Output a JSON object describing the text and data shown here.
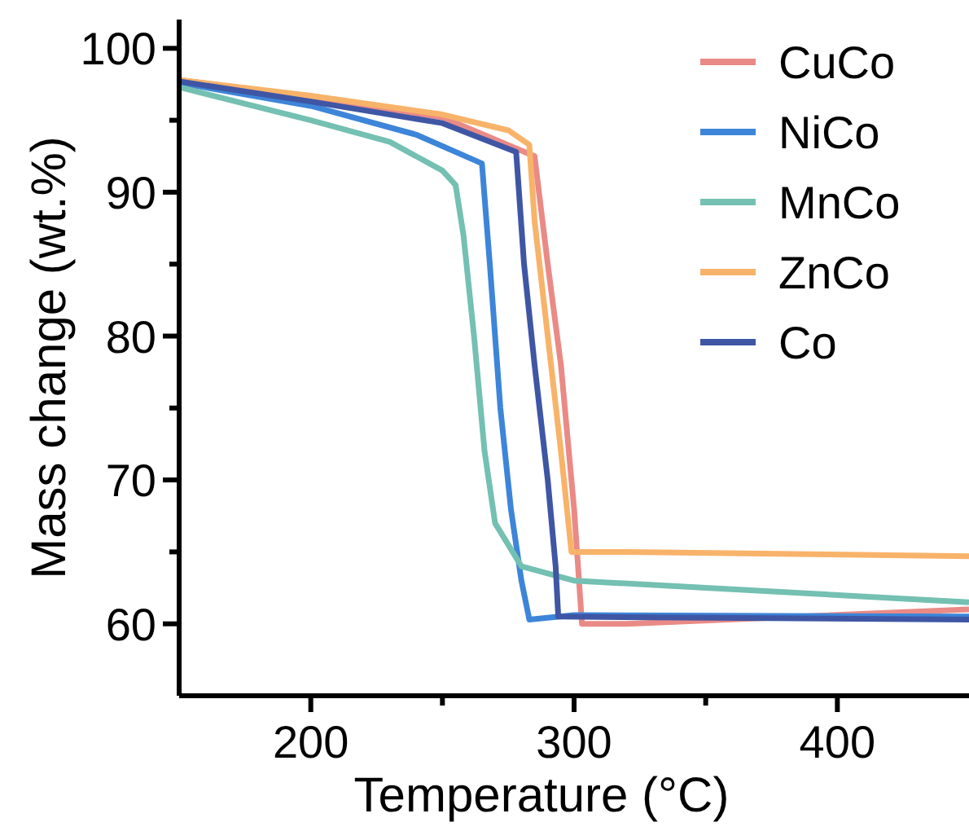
{
  "chart_data": {
    "type": "line",
    "xlabel": "Temperature (°C)",
    "ylabel": "Mass change (wt.%)",
    "xlim": [
      150,
      450
    ],
    "xticks": [
      {
        "value": 200,
        "label": "200"
      },
      {
        "value": 250,
        "label": null
      },
      {
        "value": 300,
        "label": "300"
      },
      {
        "value": 350,
        "label": null
      },
      {
        "value": 400,
        "label": "400"
      }
    ],
    "ylim": [
      55,
      102
    ],
    "yticks": [
      {
        "value": 60,
        "label": "60"
      },
      {
        "value": 65,
        "label": null
      },
      {
        "value": 70,
        "label": "70"
      },
      {
        "value": 75,
        "label": null
      },
      {
        "value": 80,
        "label": "80"
      },
      {
        "value": 85,
        "label": null
      },
      {
        "value": 90,
        "label": "90"
      },
      {
        "value": 95,
        "label": null
      },
      {
        "value": 100,
        "label": "100"
      }
    ],
    "grid": false,
    "legend": "top right",
    "marker": "none",
    "line_style": "solid",
    "series": [
      {
        "name": "CuCo",
        "color": "#ea8a86",
        "x": [
          150,
          200,
          250,
          285,
          290,
          295,
          300,
          303,
          320,
          450
        ],
        "values": [
          97.8,
          96.6,
          95.2,
          92.5,
          85,
          78,
          68,
          60,
          60,
          61
        ]
      },
      {
        "name": "NiCo",
        "color": "#3d85d8",
        "x": [
          150,
          200,
          240,
          265,
          268,
          272,
          276,
          280,
          283,
          300,
          450
        ],
        "values": [
          97.6,
          96,
          94,
          92,
          85,
          75,
          68,
          63,
          60.3,
          60.6,
          60.5
        ]
      },
      {
        "name": "MnCo",
        "color": "#74c0b2",
        "x": [
          150,
          200,
          230,
          250,
          255,
          258,
          262,
          266,
          270,
          280,
          300,
          350,
          450
        ],
        "values": [
          97.3,
          95,
          93.5,
          91.5,
          90.5,
          87,
          80,
          72,
          67,
          64,
          63,
          62.5,
          61.5
        ]
      },
      {
        "name": "ZnCo",
        "color": "#f8b36a",
        "x": [
          150,
          200,
          250,
          275,
          283,
          285,
          290,
          295,
          299,
          320,
          450
        ],
        "values": [
          97.8,
          96.7,
          95.4,
          94.3,
          93.3,
          88,
          80,
          72,
          65,
          65,
          64.7
        ]
      },
      {
        "name": "Co",
        "color": "#3f56a5",
        "x": [
          150,
          200,
          250,
          278,
          281,
          285,
          290,
          293,
          294,
          450
        ],
        "values": [
          97.7,
          96.3,
          94.8,
          92.8,
          85,
          78,
          70,
          64,
          60.5,
          60.3
        ]
      }
    ]
  }
}
